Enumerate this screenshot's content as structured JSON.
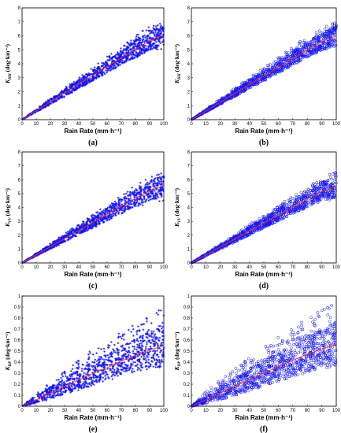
{
  "chart_data": [
    {
      "type": "scatter",
      "panel_label": "(a)",
      "marker": "star",
      "xlabel": "Rain Rate (mm·h⁻¹)",
      "ylabel_main": "K",
      "ylabel_sub": "HH",
      "ylabel_unit": "(deg·km⁻¹)",
      "xlim": [
        0,
        100
      ],
      "ylim": [
        0,
        8
      ],
      "xticks": [
        "0",
        "10",
        "20",
        "30",
        "40",
        "50",
        "60",
        "70",
        "80",
        "90",
        "100"
      ],
      "yticks": [
        "0",
        "1",
        "2",
        "3",
        "4",
        "5",
        "6",
        "7",
        "8"
      ],
      "band_upper": [
        [
          0,
          0
        ],
        [
          10,
          0.78
        ],
        [
          20,
          1.53
        ],
        [
          30,
          2.28
        ],
        [
          40,
          3.02
        ],
        [
          50,
          3.78
        ],
        [
          60,
          4.52
        ],
        [
          70,
          5.28
        ],
        [
          80,
          6.02
        ],
        [
          90,
          6.7
        ],
        [
          100,
          7.0
        ]
      ],
      "band_lower": [
        [
          0,
          0
        ],
        [
          10,
          0.55
        ],
        [
          20,
          1.05
        ],
        [
          30,
          1.6
        ],
        [
          40,
          2.2
        ],
        [
          50,
          2.8
        ],
        [
          60,
          3.35
        ],
        [
          70,
          3.9
        ],
        [
          80,
          4.4
        ],
        [
          90,
          4.9
        ],
        [
          100,
          5.0
        ]
      ],
      "mean_line": [
        [
          0,
          0
        ],
        [
          10,
          0.63
        ],
        [
          20,
          1.27
        ],
        [
          30,
          1.9
        ],
        [
          40,
          2.55
        ],
        [
          50,
          3.15
        ],
        [
          60,
          3.8
        ],
        [
          70,
          4.42
        ],
        [
          80,
          5.05
        ],
        [
          90,
          5.65
        ],
        [
          100,
          6.1
        ]
      ]
    },
    {
      "type": "scatter",
      "panel_label": "(b)",
      "marker": "circle",
      "xlabel": "Rain Rate (mm·h⁻¹)",
      "ylabel_main": "K",
      "ylabel_sub": "HH",
      "ylabel_unit": "(deg·km⁻¹)",
      "xlim": [
        0,
        100
      ],
      "ylim": [
        0,
        8
      ],
      "xticks": [
        "0",
        "10",
        "20",
        "30",
        "40",
        "50",
        "60",
        "70",
        "80",
        "90",
        "100"
      ],
      "yticks": [
        "0",
        "1",
        "2",
        "3",
        "4",
        "5",
        "6",
        "7",
        "8"
      ],
      "band_upper": [
        [
          0,
          0
        ],
        [
          10,
          0.75
        ],
        [
          20,
          1.5
        ],
        [
          30,
          2.25
        ],
        [
          40,
          3.0
        ],
        [
          50,
          3.72
        ],
        [
          60,
          4.45
        ],
        [
          70,
          5.2
        ],
        [
          80,
          5.95
        ],
        [
          90,
          6.6
        ],
        [
          100,
          7.0
        ]
      ],
      "band_lower": [
        [
          0,
          0
        ],
        [
          10,
          0.55
        ],
        [
          20,
          1.1
        ],
        [
          30,
          1.65
        ],
        [
          40,
          2.25
        ],
        [
          50,
          2.8
        ],
        [
          60,
          3.35
        ],
        [
          70,
          3.9
        ],
        [
          80,
          4.45
        ],
        [
          90,
          5.0
        ],
        [
          100,
          5.2
        ]
      ],
      "mean_line": [
        [
          0,
          0
        ],
        [
          10,
          0.62
        ],
        [
          20,
          1.25
        ],
        [
          30,
          1.88
        ],
        [
          40,
          2.52
        ],
        [
          50,
          3.12
        ],
        [
          60,
          3.75
        ],
        [
          70,
          4.38
        ],
        [
          80,
          5.0
        ],
        [
          90,
          5.6
        ],
        [
          100,
          6.0
        ]
      ]
    },
    {
      "type": "scatter",
      "panel_label": "(c)",
      "marker": "star",
      "xlabel": "Rain Rate (mm·h⁻¹)",
      "ylabel_main": "K",
      "ylabel_sub": "VV",
      "ylabel_unit": "(deg·km⁻¹)",
      "xlim": [
        0,
        100
      ],
      "ylim": [
        0,
        8
      ],
      "xticks": [
        "0",
        "10",
        "20",
        "30",
        "40",
        "50",
        "60",
        "70",
        "80",
        "90",
        "100"
      ],
      "yticks": [
        "0",
        "1",
        "2",
        "3",
        "4",
        "5",
        "6",
        "7",
        "8"
      ],
      "band_upper": [
        [
          0,
          0
        ],
        [
          10,
          0.72
        ],
        [
          20,
          1.42
        ],
        [
          30,
          2.12
        ],
        [
          40,
          2.82
        ],
        [
          50,
          3.52
        ],
        [
          60,
          4.2
        ],
        [
          70,
          4.9
        ],
        [
          80,
          5.6
        ],
        [
          90,
          6.2
        ],
        [
          100,
          6.6
        ]
      ],
      "band_lower": [
        [
          0,
          0
        ],
        [
          10,
          0.5
        ],
        [
          20,
          0.98
        ],
        [
          30,
          1.48
        ],
        [
          40,
          2.0
        ],
        [
          50,
          2.5
        ],
        [
          60,
          3.0
        ],
        [
          70,
          3.5
        ],
        [
          80,
          3.95
        ],
        [
          90,
          4.35
        ],
        [
          100,
          4.4
        ]
      ],
      "mean_line": [
        [
          0,
          0
        ],
        [
          10,
          0.58
        ],
        [
          20,
          1.17
        ],
        [
          30,
          1.76
        ],
        [
          40,
          2.35
        ],
        [
          50,
          2.92
        ],
        [
          60,
          3.5
        ],
        [
          70,
          4.08
        ],
        [
          80,
          4.66
        ],
        [
          90,
          5.2
        ],
        [
          100,
          5.6
        ]
      ]
    },
    {
      "type": "scatter",
      "panel_label": "(d)",
      "marker": "circle",
      "xlabel": "Rain Rate (mm·h⁻¹)",
      "ylabel_main": "K",
      "ylabel_sub": "VV",
      "ylabel_unit": "(deg·km⁻¹)",
      "xlim": [
        0,
        100
      ],
      "ylim": [
        0,
        8
      ],
      "xticks": [
        "0",
        "10",
        "20",
        "30",
        "40",
        "50",
        "60",
        "70",
        "80",
        "90",
        "100"
      ],
      "yticks": [
        "0",
        "1",
        "2",
        "3",
        "4",
        "5",
        "6",
        "7",
        "8"
      ],
      "band_upper": [
        [
          0,
          0
        ],
        [
          10,
          0.7
        ],
        [
          20,
          1.4
        ],
        [
          30,
          2.08
        ],
        [
          40,
          2.78
        ],
        [
          50,
          3.46
        ],
        [
          60,
          4.14
        ],
        [
          70,
          4.84
        ],
        [
          80,
          5.52
        ],
        [
          90,
          6.15
        ],
        [
          100,
          6.6
        ]
      ],
      "band_lower": [
        [
          0,
          0
        ],
        [
          10,
          0.5
        ],
        [
          20,
          1.0
        ],
        [
          30,
          1.5
        ],
        [
          40,
          2.02
        ],
        [
          50,
          2.52
        ],
        [
          60,
          3.02
        ],
        [
          70,
          3.52
        ],
        [
          80,
          4.0
        ],
        [
          90,
          4.45
        ],
        [
          100,
          4.6
        ]
      ],
      "mean_line": [
        [
          0,
          0
        ],
        [
          10,
          0.57
        ],
        [
          20,
          1.15
        ],
        [
          30,
          1.72
        ],
        [
          40,
          2.3
        ],
        [
          50,
          2.88
        ],
        [
          60,
          3.45
        ],
        [
          70,
          4.02
        ],
        [
          80,
          4.6
        ],
        [
          90,
          5.15
        ],
        [
          100,
          5.5
        ]
      ]
    },
    {
      "type": "scatter",
      "panel_label": "(e)",
      "marker": "star",
      "xlabel": "Rain Rate (mm·h⁻¹)",
      "ylabel_main": "K",
      "ylabel_sub": "DP",
      "ylabel_unit": "(deg·km⁻¹)",
      "xlim": [
        0,
        100
      ],
      "ylim": [
        0,
        1
      ],
      "xticks": [
        "0",
        "10",
        "20",
        "30",
        "40",
        "50",
        "60",
        "70",
        "80",
        "90",
        "100"
      ],
      "yticks": [
        "0",
        "0.1",
        "0.2",
        "0.3",
        "0.4",
        "0.5",
        "0.6",
        "0.7",
        "0.8",
        "0.9",
        "1"
      ],
      "band_upper": [
        [
          0,
          0
        ],
        [
          10,
          0.12
        ],
        [
          20,
          0.22
        ],
        [
          30,
          0.32
        ],
        [
          40,
          0.42
        ],
        [
          50,
          0.52
        ],
        [
          60,
          0.6
        ],
        [
          70,
          0.68
        ],
        [
          80,
          0.75
        ],
        [
          90,
          0.82
        ],
        [
          100,
          0.9
        ]
      ],
      "band_lower": [
        [
          0,
          0
        ],
        [
          10,
          0.03
        ],
        [
          20,
          0.07
        ],
        [
          30,
          0.12
        ],
        [
          40,
          0.17
        ],
        [
          50,
          0.22
        ],
        [
          60,
          0.27
        ],
        [
          70,
          0.31
        ],
        [
          80,
          0.34
        ],
        [
          90,
          0.37
        ],
        [
          100,
          0.38
        ]
      ],
      "mean_line": [
        [
          0,
          0
        ],
        [
          10,
          0.06
        ],
        [
          20,
          0.12
        ],
        [
          30,
          0.18
        ],
        [
          40,
          0.24
        ],
        [
          50,
          0.3
        ],
        [
          60,
          0.35
        ],
        [
          70,
          0.41
        ],
        [
          80,
          0.46
        ],
        [
          90,
          0.51
        ],
        [
          100,
          0.55
        ]
      ]
    },
    {
      "type": "scatter",
      "panel_label": "(f)",
      "marker": "circle",
      "xlabel": "Rain Rate (mm·h⁻¹)",
      "ylabel_main": "K",
      "ylabel_sub": "DP",
      "ylabel_unit": "(deg·km⁻¹)",
      "xlim": [
        0,
        100
      ],
      "ylim": [
        0,
        1
      ],
      "xticks": [
        "0",
        "10",
        "20",
        "30",
        "40",
        "50",
        "60",
        "70",
        "80",
        "90",
        "100"
      ],
      "yticks": [
        "0",
        "0.1",
        "0.2",
        "0.3",
        "0.4",
        "0.5",
        "0.6",
        "0.7",
        "0.8",
        "0.9",
        "1"
      ],
      "band_upper": [
        [
          0,
          0
        ],
        [
          10,
          0.13
        ],
        [
          20,
          0.24
        ],
        [
          30,
          0.34
        ],
        [
          40,
          0.44
        ],
        [
          50,
          0.54
        ],
        [
          60,
          0.63
        ],
        [
          70,
          0.72
        ],
        [
          80,
          0.8
        ],
        [
          90,
          0.88
        ],
        [
          100,
          0.95
        ]
      ],
      "band_lower": [
        [
          0,
          0
        ],
        [
          10,
          0.03
        ],
        [
          20,
          0.07
        ],
        [
          30,
          0.12
        ],
        [
          40,
          0.17
        ],
        [
          50,
          0.22
        ],
        [
          60,
          0.27
        ],
        [
          70,
          0.31
        ],
        [
          80,
          0.35
        ],
        [
          90,
          0.38
        ],
        [
          100,
          0.4
        ]
      ],
      "mean_line": [
        [
          0,
          0
        ],
        [
          10,
          0.06
        ],
        [
          20,
          0.12
        ],
        [
          30,
          0.18
        ],
        [
          40,
          0.24
        ],
        [
          50,
          0.3
        ],
        [
          60,
          0.36
        ],
        [
          70,
          0.42
        ],
        [
          80,
          0.47
        ],
        [
          90,
          0.52
        ],
        [
          100,
          0.56
        ]
      ]
    }
  ],
  "colors": {
    "points": "#1414f0",
    "mean_line": "#ff2a2a",
    "axes": "#000000"
  }
}
